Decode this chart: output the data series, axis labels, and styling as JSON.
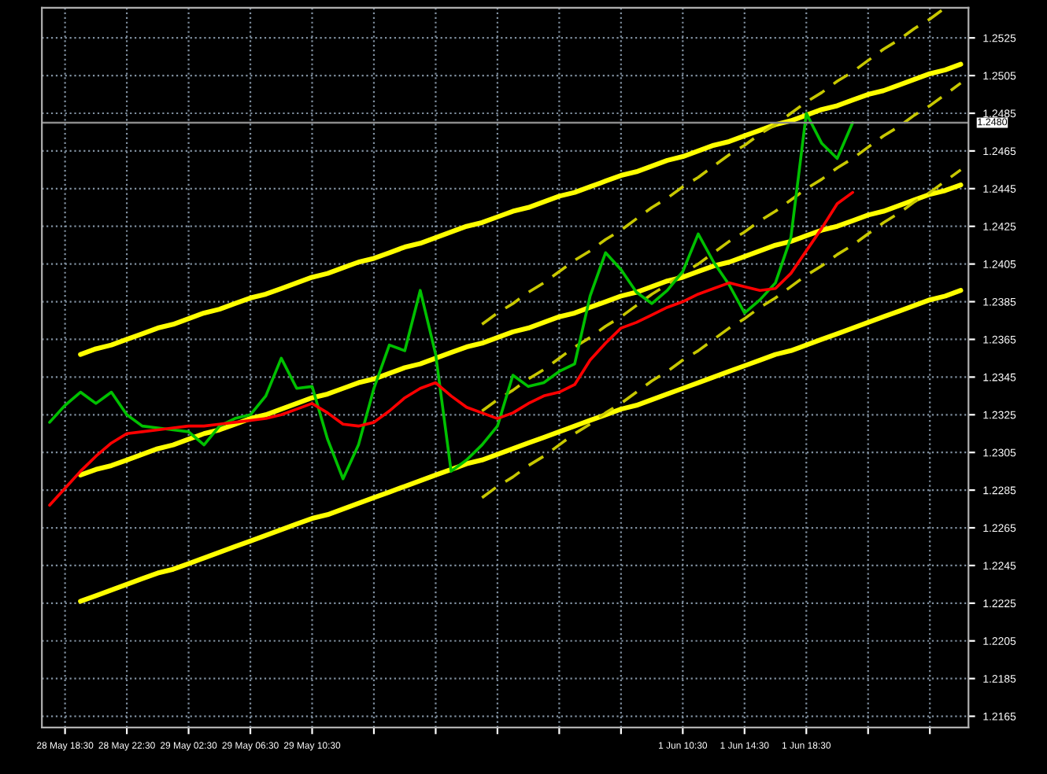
{
  "chart_data": {
    "type": "line",
    "categories": [
      null,
      "28 May 18:30",
      null,
      null,
      null,
      "28 May 22:30",
      null,
      null,
      null,
      "29 May 02:30",
      null,
      null,
      null,
      "29 May 06:30",
      null,
      null,
      null,
      "29 May 10:30",
      null,
      null,
      null,
      null,
      null,
      null,
      null,
      null,
      null,
      null,
      null,
      null,
      null,
      null,
      null,
      null,
      null,
      null,
      null,
      null,
      null,
      null,
      null,
      "1 Jun 10:30",
      null,
      null,
      null,
      "1 Jun 14:30",
      null,
      null,
      null,
      "1 Jun 18:30",
      null,
      null,
      null,
      null,
      null,
      null,
      null,
      null,
      null,
      null
    ],
    "series": [
      {
        "color": "#ffff00",
        "line_style": "solid",
        "values": [
          null,
          null,
          1.2357,
          1.236,
          1.2362,
          1.2365,
          1.2368,
          1.2371,
          1.2373,
          1.2376,
          1.2379,
          1.2381,
          1.2384,
          1.2387,
          1.2389,
          1.2392,
          1.2395,
          1.2398,
          1.24,
          1.2403,
          1.2406,
          1.2408,
          1.2411,
          1.2414,
          1.2416,
          1.2419,
          1.2422,
          1.2425,
          1.2427,
          1.243,
          1.2433,
          1.2435,
          1.2438,
          1.2441,
          1.2443,
          1.2446,
          1.2449,
          1.2452,
          1.2454,
          1.2457,
          1.246,
          1.2462,
          1.2465,
          1.2468,
          1.247,
          1.2473,
          1.2476,
          1.2479,
          1.2481,
          1.2484,
          1.2487,
          1.2489,
          1.2492,
          1.2495,
          1.2497,
          1.25,
          1.2503,
          1.2506,
          1.2508,
          1.2511
        ]
      },
      {
        "color": "#ffff00",
        "line_style": "solid",
        "values": [
          null,
          null,
          1.2293,
          1.2296,
          1.2298,
          1.2301,
          1.2304,
          1.2307,
          1.2309,
          1.2312,
          1.2315,
          1.2317,
          1.232,
          1.2323,
          1.2325,
          1.2328,
          1.2331,
          1.2334,
          1.2336,
          1.2339,
          1.2342,
          1.2344,
          1.2347,
          1.235,
          1.2352,
          1.2355,
          1.2358,
          1.2361,
          1.2363,
          1.2366,
          1.2369,
          1.2371,
          1.2374,
          1.2377,
          1.2379,
          1.2382,
          1.2385,
          1.2388,
          1.239,
          1.2393,
          1.2396,
          1.2398,
          1.2401,
          1.2404,
          1.2406,
          1.2409,
          1.2412,
          1.2415,
          1.2417,
          1.242,
          1.2423,
          1.2425,
          1.2428,
          1.2431,
          1.2433,
          1.2436,
          1.2439,
          1.2442,
          1.2444,
          1.2447
        ]
      },
      {
        "color": "#ffff00",
        "line_style": "solid",
        "values": [
          null,
          null,
          1.2226,
          1.2229,
          1.2232,
          1.2235,
          1.2238,
          1.2241,
          1.2243,
          1.2246,
          1.2249,
          1.2252,
          1.2255,
          1.2258,
          1.2261,
          1.2264,
          1.2267,
          1.227,
          1.2272,
          1.2275,
          1.2278,
          1.2281,
          1.2284,
          1.2287,
          1.229,
          1.2293,
          1.2296,
          1.2299,
          1.2301,
          1.2304,
          1.2307,
          1.231,
          1.2313,
          1.2316,
          1.2319,
          1.2322,
          1.2325,
          1.2328,
          1.233,
          1.2333,
          1.2336,
          1.2339,
          1.2342,
          1.2345,
          1.2348,
          1.2351,
          1.2354,
          1.2357,
          1.2359,
          1.2362,
          1.2365,
          1.2368,
          1.2371,
          1.2374,
          1.2377,
          1.238,
          1.2383,
          1.2386,
          1.2388,
          1.2391
        ]
      },
      {
        "color": "#c8c800",
        "line_style": "dashed",
        "values": [
          null,
          null,
          null,
          null,
          null,
          null,
          null,
          null,
          null,
          null,
          null,
          null,
          null,
          null,
          null,
          null,
          null,
          null,
          null,
          null,
          null,
          null,
          null,
          null,
          null,
          null,
          null,
          null,
          1.2373,
          1.2379,
          1.2384,
          1.239,
          1.2395,
          1.2401,
          1.2407,
          1.2412,
          1.2418,
          1.2423,
          1.2429,
          1.2435,
          1.244,
          1.2446,
          1.2451,
          1.2457,
          1.2463,
          1.2468,
          1.2474,
          1.2479,
          1.2485,
          1.2491,
          1.2496,
          1.2502,
          1.2507,
          1.2513,
          1.2519,
          1.2524,
          1.253,
          1.2535,
          1.2541,
          null
        ]
      },
      {
        "color": "#c8c800",
        "line_style": "dashed",
        "values": [
          null,
          null,
          null,
          null,
          null,
          null,
          null,
          null,
          null,
          null,
          null,
          null,
          null,
          null,
          null,
          null,
          null,
          null,
          null,
          null,
          null,
          null,
          null,
          null,
          null,
          null,
          null,
          null,
          1.2327,
          1.2333,
          1.2338,
          1.2344,
          1.2349,
          1.2355,
          1.2361,
          1.2366,
          1.2372,
          1.2377,
          1.2383,
          1.2389,
          1.2394,
          1.24,
          1.2405,
          1.2411,
          1.2417,
          1.2422,
          1.2428,
          1.2433,
          1.2439,
          1.2445,
          1.245,
          1.2456,
          1.2461,
          1.2467,
          1.2473,
          1.2478,
          1.2484,
          1.2489,
          1.2495,
          1.2501
        ]
      },
      {
        "color": "#c8c800",
        "line_style": "dashed",
        "values": [
          null,
          null,
          null,
          null,
          null,
          null,
          null,
          null,
          null,
          null,
          null,
          null,
          null,
          null,
          null,
          null,
          null,
          null,
          null,
          null,
          null,
          null,
          null,
          null,
          null,
          null,
          null,
          null,
          1.2281,
          1.2287,
          1.2292,
          1.2298,
          1.2303,
          1.2309,
          1.2315,
          1.232,
          1.2326,
          1.2331,
          1.2337,
          1.2343,
          1.2348,
          1.2354,
          1.2359,
          1.2365,
          1.2371,
          1.2376,
          1.2382,
          1.2387,
          1.2393,
          1.2399,
          1.2404,
          1.241,
          1.2415,
          1.2421,
          1.2427,
          1.2432,
          1.2438,
          1.2443,
          1.2449,
          1.2455
        ]
      },
      {
        "color": "#00c000",
        "line_style": "solid",
        "values": [
          1.2321,
          1.233,
          1.2337,
          1.2331,
          1.2337,
          1.2325,
          1.2319,
          1.2318,
          1.2317,
          1.2316,
          1.2309,
          1.2319,
          1.2323,
          1.2325,
          1.2335,
          1.2355,
          1.2339,
          1.234,
          1.2312,
          1.2291,
          1.2309,
          1.2339,
          1.2362,
          1.2359,
          1.2391,
          1.2357,
          1.2295,
          1.2301,
          1.2309,
          1.2319,
          1.2346,
          1.234,
          1.2342,
          1.2348,
          1.2352,
          1.2388,
          1.2411,
          1.2402,
          1.239,
          1.2384,
          1.2391,
          1.2401,
          1.2421,
          1.2406,
          1.2394,
          1.2379,
          1.2386,
          1.2395,
          1.2419,
          1.2485,
          1.2469,
          1.2461,
          1.248,
          null,
          null,
          null,
          null,
          null,
          null,
          null
        ]
      },
      {
        "color": "#ff0000",
        "line_style": "solid",
        "values": [
          1.2277,
          1.2286,
          1.2295,
          1.2303,
          1.231,
          1.2315,
          1.2316,
          1.2317,
          1.2318,
          1.2319,
          1.2319,
          1.232,
          1.2321,
          1.2322,
          1.2323,
          1.2325,
          1.2328,
          1.2331,
          1.2326,
          1.232,
          1.2319,
          1.2321,
          1.2327,
          1.2334,
          1.2339,
          1.2342,
          1.2335,
          1.2329,
          1.2326,
          1.2323,
          1.2326,
          1.2331,
          1.2335,
          1.2337,
          1.2341,
          1.2354,
          1.2363,
          1.2371,
          1.2374,
          1.2378,
          1.2382,
          1.2385,
          1.2389,
          1.2392,
          1.2395,
          1.2393,
          1.2391,
          1.2392,
          1.24,
          1.2412,
          1.2424,
          1.2437,
          1.2443,
          null,
          null,
          null,
          null,
          null,
          null,
          null
        ]
      }
    ],
    "ylim": [
      1.2159,
      1.2541
    ],
    "yticks": [
      1.2165,
      1.2185,
      1.2205,
      1.2225,
      1.2245,
      1.2265,
      1.2285,
      1.2305,
      1.2325,
      1.2345,
      1.2365,
      1.2385,
      1.2405,
      1.2425,
      1.2445,
      1.2465,
      1.2485,
      1.2505,
      1.2525
    ],
    "ref_lines": [
      {
        "axis": "y",
        "value": 1.248,
        "label": "1.2480",
        "color": "#8c8c8c",
        "line_style": "solid"
      }
    ],
    "grid": true
  }
}
